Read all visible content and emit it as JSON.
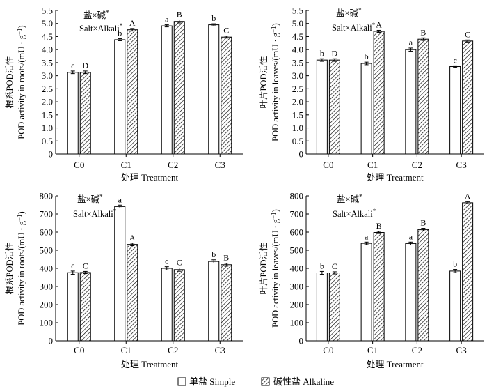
{
  "legend": {
    "simple": "单盐 Simple",
    "alkaline": "碱性盐 Alkaline"
  },
  "chart_data": [
    {
      "type": "bar",
      "panel": "top-left",
      "categories": [
        "C0",
        "C1",
        "C2",
        "C3"
      ],
      "series": [
        {
          "name": "单盐 Simple",
          "values": [
            3.13,
            4.38,
            4.91,
            4.95
          ],
          "errors": [
            0.05,
            0.04,
            0.04,
            0.04
          ],
          "letters": [
            "c",
            "b",
            "a",
            "b"
          ]
        },
        {
          "name": "碱性盐 Alkaline",
          "values": [
            3.13,
            4.76,
            5.08,
            4.48
          ],
          "errors": [
            0.05,
            0.05,
            0.06,
            0.04
          ],
          "letters": [
            "D",
            "A",
            "B",
            "C"
          ]
        }
      ],
      "xlabel": "处理 Treatment",
      "ylabel_cn": "根系POD活性",
      "ylabel_en": "POD activity in roots/(mU · g",
      "ylabel_sup": "−1",
      "ylabel_end": ")",
      "ylim": [
        0,
        5.5
      ],
      "yticks": [
        0,
        0.5,
        1.0,
        1.5,
        2.0,
        2.5,
        3.0,
        3.5,
        4.0,
        4.5,
        5.0,
        5.5
      ],
      "ytick_labels": [
        "0",
        "0.5",
        "1.0",
        "1.5",
        "2.0",
        "2.5",
        "3.0",
        "3.5",
        "4.0",
        "4.5",
        "5.0",
        "5.5"
      ],
      "annotation_cn": "盐×碱",
      "annotation_en": "Salt×Alkali",
      "annotation_mark": "*"
    },
    {
      "type": "bar",
      "panel": "top-right",
      "categories": [
        "C0",
        "C1",
        "C2",
        "C3"
      ],
      "series": [
        {
          "name": "单盐 Simple",
          "values": [
            3.6,
            3.47,
            4.0,
            3.35
          ],
          "errors": [
            0.05,
            0.05,
            0.06,
            0.03
          ],
          "letters": [
            "b",
            "b",
            "a",
            "c"
          ]
        },
        {
          "name": "碱性盐 Alkaline",
          "values": [
            3.6,
            4.7,
            4.4,
            4.33
          ],
          "errors": [
            0.05,
            0.04,
            0.05,
            0.04
          ],
          "letters": [
            "D",
            "A",
            "B",
            "C"
          ]
        }
      ],
      "xlabel": "处理 Treatment",
      "ylabel_cn": "叶片POD活性",
      "ylabel_en": "POD activity in leaves/(mU · g",
      "ylabel_sup": "−1",
      "ylabel_end": ")",
      "ylim": [
        0,
        5.5
      ],
      "yticks": [
        0,
        0.5,
        1.0,
        1.5,
        2.0,
        2.5,
        3.0,
        3.5,
        4.0,
        4.5,
        5.0,
        5.5
      ],
      "ytick_labels": [
        "0",
        "0.5",
        "1.0",
        "1.5",
        "2.0",
        "2.5",
        "3.0",
        "3.5",
        "4.0",
        "4.5",
        "5.0",
        "5.5"
      ],
      "annotation_cn": "盐×碱",
      "annotation_en": "Salt×Alkali",
      "annotation_mark": "*"
    },
    {
      "type": "bar",
      "panel": "bottom-left",
      "categories": [
        "C0",
        "C1",
        "C2",
        "C3"
      ],
      "series": [
        {
          "name": "单盐 Simple",
          "values": [
            376,
            741,
            400,
            438
          ],
          "errors": [
            9,
            8,
            9,
            9
          ],
          "letters": [
            "c",
            "a",
            "c",
            "b"
          ]
        },
        {
          "name": "碱性盐 Alkaline",
          "values": [
            377,
            532,
            393,
            420
          ],
          "errors": [
            6,
            7,
            9,
            8
          ],
          "letters": [
            "C",
            "A",
            "C",
            "B"
          ]
        }
      ],
      "xlabel": "处理 Treatment",
      "ylabel_cn": "根系POD活性",
      "ylabel_en": "POD activity in roots/(mU · g",
      "ylabel_sup": "−1",
      "ylabel_end": ")",
      "ylim": [
        0,
        800
      ],
      "yticks": [
        0,
        100,
        200,
        300,
        400,
        500,
        600,
        700,
        800
      ],
      "ytick_labels": [
        "0",
        "100",
        "200",
        "300",
        "400",
        "500",
        "600",
        "700",
        "800"
      ],
      "annotation_cn": "盐×碱",
      "annotation_en": "Salt×Alkali",
      "annotation_mark": "*"
    },
    {
      "type": "bar",
      "panel": "bottom-right",
      "categories": [
        "C0",
        "C1",
        "C2",
        "C3"
      ],
      "series": [
        {
          "name": "单盐 Simple",
          "values": [
            375,
            538,
            537,
            385
          ],
          "errors": [
            8,
            7,
            8,
            9
          ],
          "letters": [
            "b",
            "a",
            "a",
            "b"
          ]
        },
        {
          "name": "碱性盐 Alkaline",
          "values": [
            375,
            598,
            614,
            762
          ],
          "errors": [
            6,
            6,
            7,
            6
          ],
          "letters": [
            "C",
            "B",
            "B",
            "A"
          ]
        }
      ],
      "xlabel": "处理 Treatment",
      "ylabel_cn": "叶片POD活性",
      "ylabel_en": "POD activity in leaves/(mU · g",
      "ylabel_sup": "−1",
      "ylabel_end": ")",
      "ylim": [
        0,
        800
      ],
      "yticks": [
        0,
        100,
        200,
        300,
        400,
        500,
        600,
        700,
        800
      ],
      "ytick_labels": [
        "0",
        "100",
        "200",
        "300",
        "400",
        "500",
        "600",
        "700",
        "800"
      ],
      "annotation_cn": "盐×碱",
      "annotation_en": "Salt×Alkali",
      "annotation_mark": "*"
    }
  ]
}
